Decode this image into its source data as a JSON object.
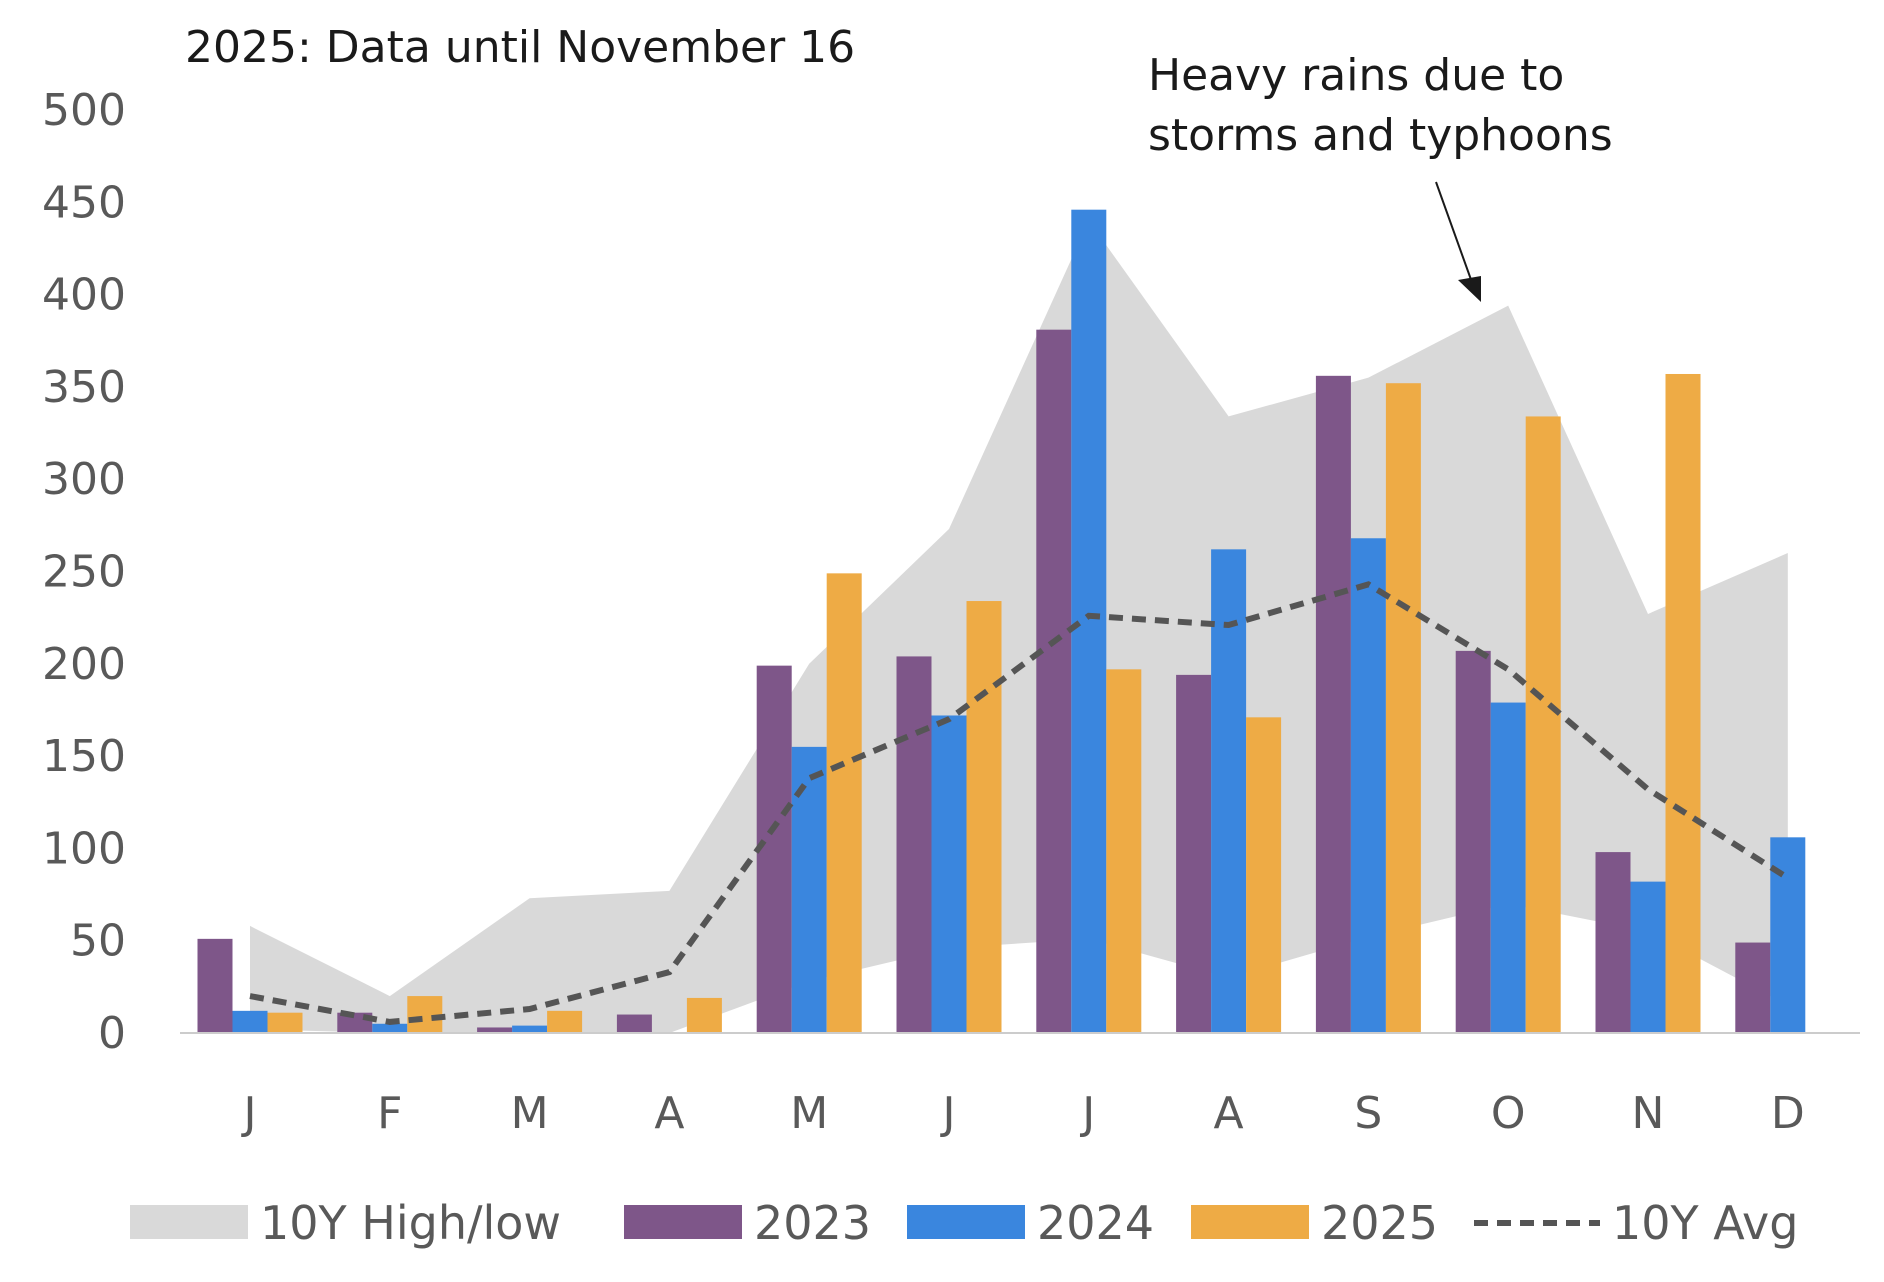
{
  "chart_data": {
    "type": "bar",
    "subtitle": "2025: Data until November 16",
    "annotation": [
      "Heavy rains due to",
      "storms and typhoons"
    ],
    "categories": [
      "J",
      "F",
      "M",
      "A",
      "M",
      "J",
      "J",
      "A",
      "S",
      "O",
      "N",
      "D"
    ],
    "ylim": [
      0,
      500
    ],
    "yticks": [
      0,
      50,
      100,
      150,
      200,
      250,
      300,
      350,
      400,
      450,
      500
    ],
    "grid": false,
    "legend_position": "bottom",
    "range": {
      "name": "10Y High/low",
      "color": "#d9d9d9",
      "high": [
        58,
        20,
        73,
        77,
        200,
        273,
        440,
        334,
        355,
        394,
        227,
        260
      ],
      "low": [
        2,
        0,
        0,
        0,
        28,
        46,
        51,
        30,
        52,
        70,
        55,
        15
      ]
    },
    "series": [
      {
        "name": "2023",
        "color": "#7e5689",
        "values": [
          51,
          11,
          3,
          10,
          199,
          204,
          381,
          194,
          356,
          207,
          98,
          49
        ]
      },
      {
        "name": "2024",
        "color": "#3a86de",
        "values": [
          12,
          5,
          4,
          null,
          155,
          172,
          446,
          262,
          268,
          179,
          82,
          106
        ]
      },
      {
        "name": "2025",
        "color": "#eeab45",
        "values": [
          11,
          20,
          12,
          19,
          249,
          234,
          197,
          171,
          352,
          334,
          357,
          null
        ]
      }
    ],
    "average": {
      "name": "10Y Avg",
      "color": "#555555",
      "values": [
        20,
        6,
        13,
        33,
        138,
        170,
        226,
        221,
        243,
        197,
        132,
        84
      ]
    }
  }
}
